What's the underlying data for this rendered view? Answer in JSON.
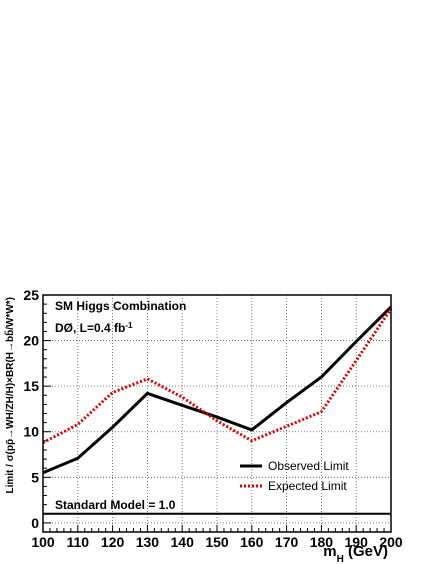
{
  "chart_data": {
    "type": "line",
    "title": "",
    "xlabel": "m",
    "xlabel_sub": "H",
    "xlabel_unit": " (GeV)",
    "ylabel": "Limit / σ(pp̄→WH/ZH/H)×BR(H→bb̄/W*W*)",
    "xlim": [
      100,
      200
    ],
    "ylim": [
      -1,
      25
    ],
    "xticks": [
      100,
      110,
      120,
      130,
      140,
      150,
      160,
      170,
      180,
      190,
      200
    ],
    "yticks": [
      0,
      5,
      10,
      15,
      20,
      25
    ],
    "grid": true,
    "legend_position": "bottom-right",
    "series": [
      {
        "name": "Observed Limit",
        "color": "#000000",
        "style": "solid",
        "x": [
          100,
          110,
          120,
          130,
          140,
          150,
          160,
          170,
          180,
          190,
          200
        ],
        "y": [
          5.5,
          7.1,
          10.5,
          14.2,
          12.9,
          11.6,
          10.2,
          13.2,
          16.0,
          19.9,
          23.7
        ]
      },
      {
        "name": "Expected Limit",
        "color": "#e00000",
        "style": "dotted",
        "x": [
          100,
          110,
          120,
          130,
          140,
          150,
          160,
          170,
          180,
          190,
          200
        ],
        "y": [
          8.8,
          10.8,
          14.3,
          15.8,
          13.8,
          11.2,
          9.0,
          10.6,
          12.2,
          17.8,
          23.5
        ]
      },
      {
        "name": "Standard Model = 1.0",
        "color": "#000000",
        "style": "solid",
        "x": [
          100,
          200
        ],
        "y": [
          1.0,
          1.0
        ]
      }
    ],
    "annotations": {
      "line1": "SM Higgs Combination",
      "line2_main": "DØ, L=0.4 fb",
      "line2_sup": "-1",
      "sm_label": "Standard Model = 1.0"
    }
  }
}
